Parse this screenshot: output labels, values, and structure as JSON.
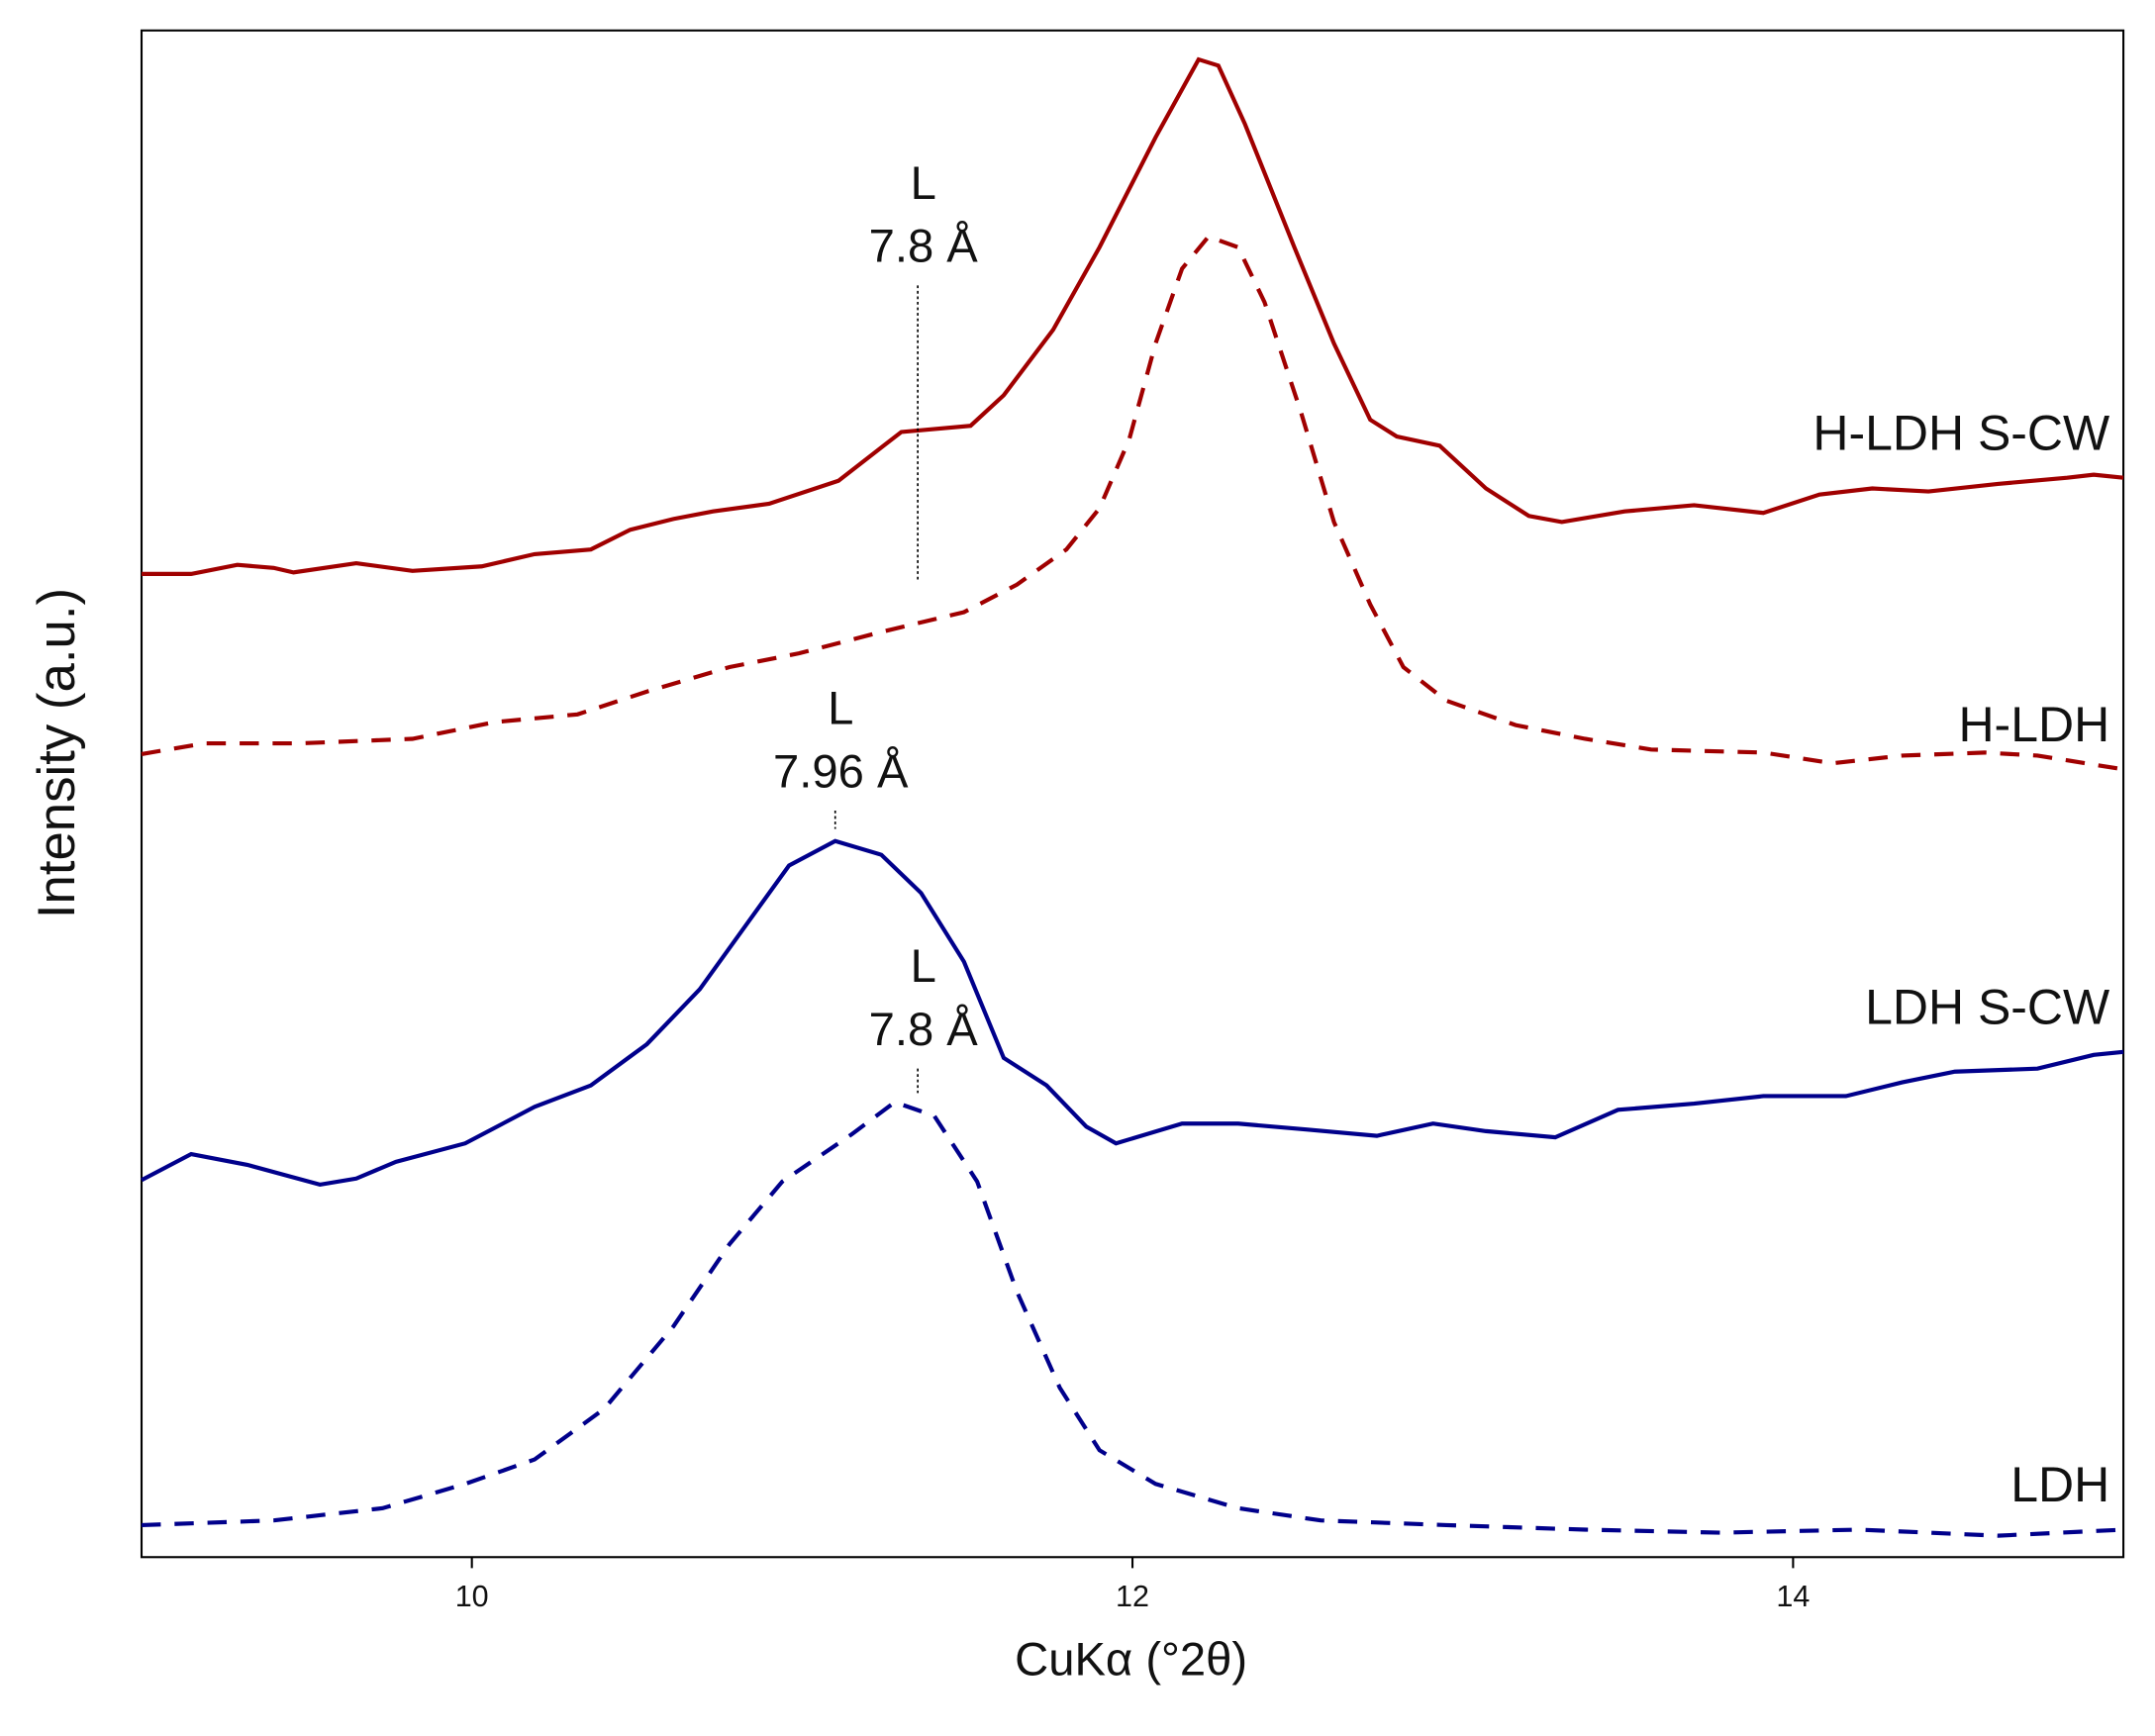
{
  "chart_data": {
    "type": "line",
    "xlabel": "CuKα (°2θ)",
    "ylabel": "Intensity (a.u.)",
    "xlim": [
      9,
      15
    ],
    "ylim": [
      0,
      100
    ],
    "xticks": [
      10,
      12,
      14
    ],
    "grid": false,
    "series": [
      {
        "name": "H-LDH S-CW",
        "color": "#a00000",
        "linestyle": "solid",
        "x": [
          9.0,
          9.15,
          9.29,
          9.4,
          9.46,
          9.65,
          9.82,
          10.03,
          10.19,
          10.36,
          10.48,
          10.61,
          10.73,
          10.9,
          11.11,
          11.3,
          11.51,
          11.61,
          11.76,
          11.9,
          12.07,
          12.2,
          12.26,
          12.34,
          12.49,
          12.61,
          12.72,
          12.8,
          12.93,
          13.07,
          13.2,
          13.3,
          13.49,
          13.7,
          13.91,
          14.08,
          14.24,
          14.41,
          14.62,
          14.83,
          14.91,
          15.0
        ],
        "values": [
          64.4,
          64.4,
          65.0,
          64.8,
          64.5,
          65.1,
          64.6,
          64.9,
          65.7,
          66.0,
          67.3,
          68.0,
          68.5,
          69.0,
          70.5,
          73.7,
          74.1,
          76.1,
          80.4,
          85.8,
          93.0,
          98.1,
          97.7,
          93.9,
          85.8,
          79.5,
          74.5,
          73.4,
          72.8,
          70.0,
          68.2,
          67.8,
          68.5,
          68.9,
          68.4,
          69.6,
          70.0,
          69.8,
          70.3,
          70.7,
          70.9,
          70.7
        ]
      },
      {
        "name": "H-LDH",
        "color": "#a00000",
        "linestyle": "dashed",
        "x": [
          9.0,
          9.19,
          9.48,
          9.82,
          10.07,
          10.32,
          10.53,
          10.78,
          10.99,
          11.24,
          11.49,
          11.65,
          11.8,
          11.9,
          11.99,
          12.07,
          12.15,
          12.23,
          12.32,
          12.4,
          12.51,
          12.61,
          12.72,
          12.82,
          12.95,
          13.16,
          13.37,
          13.57,
          13.91,
          14.12,
          14.33,
          14.58,
          14.74,
          15.0
        ],
        "values": [
          52.6,
          53.3,
          53.3,
          53.6,
          54.7,
          55.2,
          56.7,
          58.3,
          59.2,
          60.6,
          61.9,
          63.7,
          66.0,
          68.7,
          73.2,
          79.5,
          84.4,
          86.5,
          85.8,
          82.2,
          75.0,
          67.8,
          62.4,
          58.3,
          56.1,
          54.5,
          53.6,
          52.9,
          52.7,
          52.0,
          52.5,
          52.7,
          52.5,
          51.6
        ]
      },
      {
        "name": "LDH S-CW",
        "color": "#00008b",
        "linestyle": "solid",
        "x": [
          9.0,
          9.15,
          9.32,
          9.54,
          9.65,
          9.77,
          9.98,
          10.19,
          10.36,
          10.53,
          10.69,
          10.84,
          10.96,
          11.1,
          11.24,
          11.36,
          11.49,
          11.61,
          11.74,
          11.86,
          11.95,
          12.15,
          12.32,
          12.53,
          12.74,
          12.91,
          13.07,
          13.28,
          13.47,
          13.7,
          13.91,
          14.16,
          14.33,
          14.49,
          14.74,
          14.91,
          15.0
        ],
        "values": [
          24.7,
          26.4,
          25.7,
          24.4,
          24.8,
          25.9,
          27.1,
          29.5,
          30.9,
          33.6,
          37.2,
          41.7,
          45.3,
          46.9,
          46.0,
          43.5,
          39.0,
          32.7,
          30.9,
          28.2,
          27.1,
          28.4,
          28.4,
          28.0,
          27.6,
          28.4,
          27.9,
          27.5,
          29.3,
          29.7,
          30.2,
          30.2,
          31.1,
          31.8,
          32.0,
          32.9,
          33.1
        ]
      },
      {
        "name": "LDH",
        "color": "#00008b",
        "linestyle": "dashed",
        "x": [
          9.0,
          9.4,
          9.73,
          9.98,
          10.19,
          10.4,
          10.61,
          10.78,
          10.94,
          11.15,
          11.28,
          11.4,
          11.53,
          11.65,
          11.78,
          11.9,
          12.07,
          12.32,
          12.57,
          12.95,
          13.37,
          13.78,
          14.2,
          14.62,
          15.0
        ],
        "values": [
          2.1,
          2.4,
          3.2,
          4.8,
          6.4,
          9.7,
          15.1,
          20.5,
          24.6,
          27.7,
          29.8,
          28.9,
          24.6,
          17.4,
          11.1,
          7.0,
          4.8,
          3.2,
          2.4,
          2.1,
          1.8,
          1.6,
          1.8,
          1.4,
          1.8
        ]
      }
    ],
    "annotations": [
      {
        "label": "L",
        "text": "7.8 Å",
        "x": 11.35,
        "ymax": 83.3,
        "ymin": 64.0
      },
      {
        "label": "L",
        "text": "7.96 Å",
        "x": 11.1,
        "ymax": 48.9,
        "ymin": 47.7
      },
      {
        "label": "L",
        "text": "7.8 Å",
        "x": 11.35,
        "ymax": 32.0,
        "ymin": 30.4
      }
    ]
  }
}
